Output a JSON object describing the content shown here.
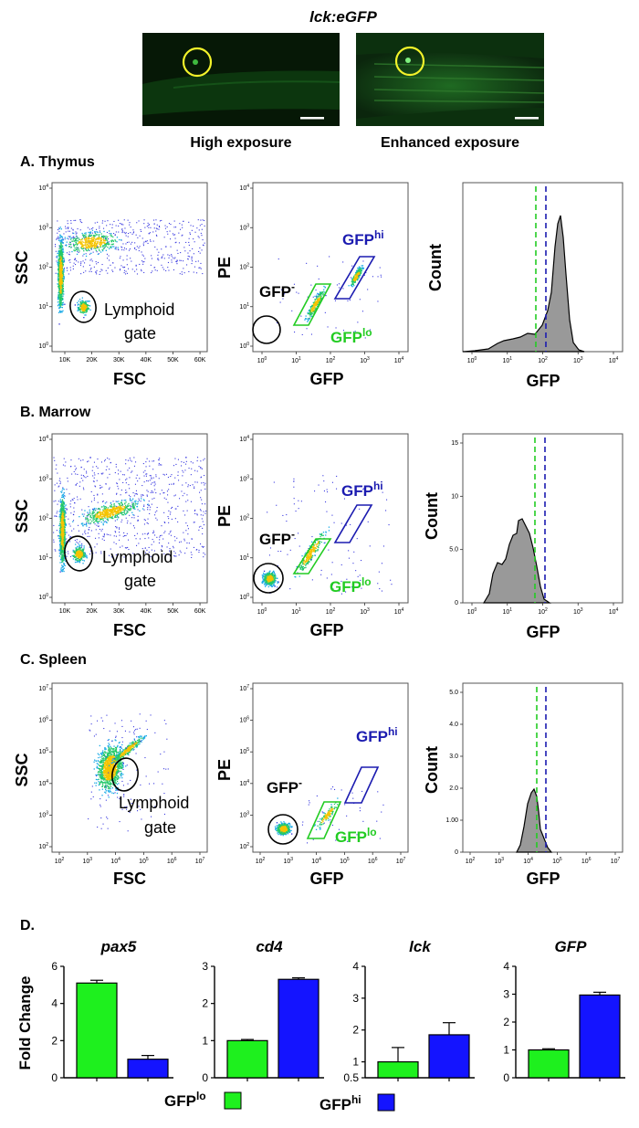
{
  "header": {
    "title": "lck:eGFP",
    "image_left_caption": "High exposure",
    "image_right_caption": "Enhanced exposure"
  },
  "panels": {
    "A": "A. Thymus",
    "B": "B. Marrow",
    "C": "C. Spleen",
    "D": "D."
  },
  "flow": {
    "ssc_label": "SSC",
    "fsc_label": "FSC",
    "pe_label": "PE",
    "gfp_label": "GFP",
    "count_label": "Count",
    "lymphoid_gate_line1": "Lymphoid",
    "lymphoid_gate_line2": "gate",
    "gfp_neg": "GFP",
    "gfp_neg_sup": "-",
    "gfp_hi": "GFP",
    "gfp_hi_sup": "hi",
    "gfp_lo": "GFP",
    "gfp_lo_sup": "lo",
    "linear_ticks": [
      "10K",
      "20K",
      "30K",
      "40K",
      "50K",
      "60K"
    ],
    "log4_ticks": [
      "10",
      "10",
      "10",
      "10",
      "10"
    ],
    "log4_exp": [
      "0",
      "1",
      "2",
      "3",
      "4"
    ],
    "log7_ticks_y": [
      "10",
      "10",
      "10",
      "10",
      "10",
      "10"
    ],
    "log7_exp_y": [
      "2",
      "3",
      "4",
      "5",
      "6",
      "7"
    ],
    "log7_exp_x": [
      "2",
      "3",
      "4",
      "5",
      "6",
      "7"
    ],
    "count_ticks_B": [
      "0",
      "5.0",
      "10",
      "15"
    ],
    "count_ticks_C": [
      "0",
      "1.00",
      "2.0",
      "3.0",
      "4.0",
      "5.0"
    ]
  },
  "colors": {
    "gfp_lo": "#22cc22",
    "gfp_hi": "#1b1bb0",
    "bar_lo": "#1ef01e",
    "bar_hi": "#1414ff",
    "gate_circle": "#000000",
    "gate_yellow": "#f2f22a"
  },
  "chart_data": [
    {
      "type": "bar",
      "title": "pax5",
      "categories": [
        "GFPlo",
        "GFPhi"
      ],
      "values": [
        5.1,
        1.0
      ],
      "errors": [
        0.15,
        0.2
      ],
      "ylabel": "Fold Change",
      "ylim": [
        0,
        6
      ],
      "yticks": [
        "0",
        "2",
        "4",
        "6"
      ]
    },
    {
      "type": "bar",
      "title": "cd4",
      "categories": [
        "GFPlo",
        "GFPhi"
      ],
      "values": [
        1.0,
        2.65
      ],
      "errors": [
        0.03,
        0.04
      ],
      "ylim": [
        0,
        3
      ],
      "yticks": [
        "0",
        "1",
        "2",
        "3"
      ]
    },
    {
      "type": "bar",
      "title": "lck",
      "categories": [
        "GFPlo",
        "GFPhi"
      ],
      "values": [
        1.0,
        1.85
      ],
      "errors": [
        0.45,
        0.38
      ],
      "ylim": [
        0.5,
        4
      ],
      "yticks": [
        "0.5",
        "1",
        "2",
        "3",
        "4"
      ]
    },
    {
      "type": "bar",
      "title": "GFP",
      "categories": [
        "GFPlo",
        "GFPhi"
      ],
      "values": [
        1.0,
        2.97
      ],
      "errors": [
        0.04,
        0.1
      ],
      "ylim": [
        0,
        4
      ],
      "yticks": [
        "0",
        "1",
        "2",
        "3",
        "4"
      ]
    }
  ],
  "legend": {
    "lo_label": "GFP",
    "lo_sup": "lo",
    "hi_label": "GFP",
    "hi_sup": "hi"
  }
}
